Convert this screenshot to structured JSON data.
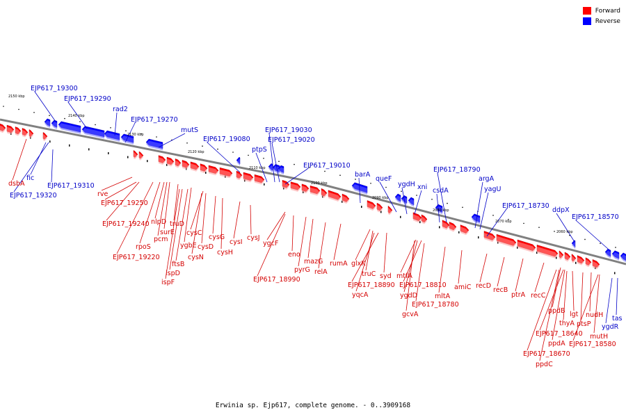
{
  "caption": "Erwinia sp. Ejp617, complete genome. - 0..3909168",
  "legend": {
    "forward_label": "Forward",
    "reverse_label": "Reverse",
    "forward_color": "#ff0000",
    "reverse_color": "#0000ff"
  },
  "scale_labels": [
    "2150 kbp",
    "2140 kbp",
    "2130 kbp",
    "2120 kbp",
    "2110 kbp",
    "2100 kbp",
    "2090 kbp",
    "2080 kbp",
    "2070 kbp",
    "2060 kbp"
  ],
  "genes_top": [
    "EJP617_19300",
    "EJP617_19290",
    "rad2",
    "EJP617_19270",
    "mutS",
    "EJP617_19080",
    "ptpS",
    "EJP617_19030",
    "EJP617_19020",
    "EJP617_19010",
    "barA",
    "queF",
    "ygdH",
    "xni",
    "csdA",
    "EJP617_18790",
    "argA",
    "yagU",
    "EJP617_18730",
    "ddpX",
    "EJP617_18570"
  ],
  "genes_bottom_fwd": [
    "dsbA",
    "rve",
    "EJP617_19250",
    "EJP617_19240",
    "nlpD",
    "surE",
    "pcm",
    "rpoS",
    "EJP617_19220",
    "truD",
    "ygbE",
    "ftsB",
    "ispD",
    "ispF",
    "cysC",
    "cysD",
    "cysN",
    "cysG",
    "cysH",
    "cysI",
    "cysJ",
    "ygcF",
    "EJP617_18990",
    "eno",
    "pyrG",
    "mazG",
    "relA",
    "rumA",
    "glxK",
    "truC",
    "syd",
    "EJP617_18890",
    "yqcA",
    "mtfA",
    "EJP617_18810",
    "ygdD",
    "gcvA",
    "EJP617_18780",
    "mltA",
    "amiC",
    "recD",
    "recB",
    "ptrA",
    "recC",
    "ppdB",
    "lgt",
    "thyA",
    "ptsP",
    "nudH",
    "EJP617_18640",
    "ppdA",
    "EJP617_18670",
    "ppdC",
    "EJP617_18580",
    "mutH"
  ],
  "genes_bottom_rev": [
    "fic",
    "EJP617_19320",
    "EJP617_19310",
    "ygdR",
    "tas"
  ]
}
